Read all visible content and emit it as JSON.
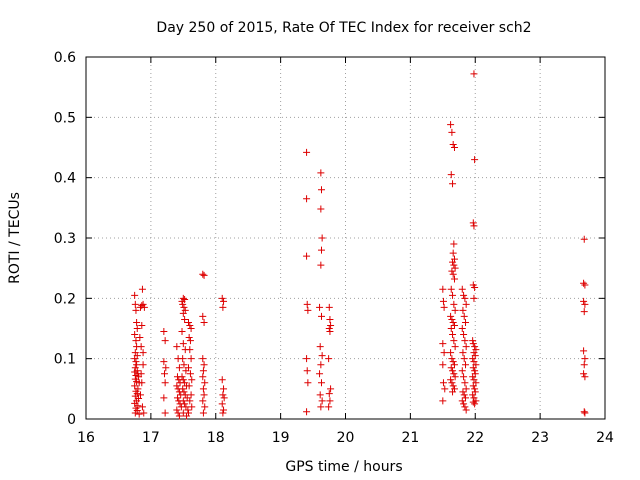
{
  "chart_data": {
    "type": "scatter",
    "title": "Day 250 of 2015, Rate Of TEC Index for receiver sch2",
    "xlabel": "GPS time / hours",
    "ylabel": "ROTI / TECUs",
    "xlim": [
      16,
      24
    ],
    "ylim": [
      0,
      0.6
    ],
    "xticks": [
      "16",
      "17",
      "18",
      "19",
      "20",
      "21",
      "22",
      "23",
      "24"
    ],
    "yticks": [
      "0",
      "0.1",
      "0.2",
      "0.3",
      "0.4",
      "0.5",
      "0.6"
    ],
    "grid": true,
    "marker": "plus",
    "color": "#dd0000",
    "points": [
      [
        16.75,
        0.205
      ],
      [
        16.76,
        0.19
      ],
      [
        16.77,
        0.18
      ],
      [
        16.78,
        0.16
      ],
      [
        16.79,
        0.15
      ],
      [
        16.75,
        0.14
      ],
      [
        16.77,
        0.13
      ],
      [
        16.78,
        0.12
      ],
      [
        16.76,
        0.11
      ],
      [
        16.79,
        0.105
      ],
      [
        16.75,
        0.1
      ],
      [
        16.77,
        0.095
      ],
      [
        16.78,
        0.09
      ],
      [
        16.76,
        0.085
      ],
      [
        16.79,
        0.08
      ],
      [
        16.75,
        0.078
      ],
      [
        16.8,
        0.075
      ],
      [
        16.77,
        0.072
      ],
      [
        16.81,
        0.07
      ],
      [
        16.76,
        0.066
      ],
      [
        16.78,
        0.062
      ],
      [
        16.82,
        0.06
      ],
      [
        16.75,
        0.055
      ],
      [
        16.8,
        0.05
      ],
      [
        16.77,
        0.046
      ],
      [
        16.79,
        0.042
      ],
      [
        16.76,
        0.038
      ],
      [
        16.81,
        0.034
      ],
      [
        16.78,
        0.03
      ],
      [
        16.75,
        0.026
      ],
      [
        16.8,
        0.022
      ],
      [
        16.77,
        0.018
      ],
      [
        16.79,
        0.014
      ],
      [
        16.76,
        0.01
      ],
      [
        16.82,
        0.008
      ],
      [
        16.84,
        0.185
      ],
      [
        16.86,
        0.188
      ],
      [
        16.88,
        0.19
      ],
      [
        16.9,
        0.185
      ],
      [
        16.87,
        0.215
      ],
      [
        16.85,
        0.12
      ],
      [
        16.88,
        0.09
      ],
      [
        16.86,
        0.06
      ],
      [
        16.84,
        0.04
      ],
      [
        16.87,
        0.02
      ],
      [
        16.89,
        0.01
      ],
      [
        16.85,
        0.075
      ],
      [
        16.88,
        0.11
      ],
      [
        16.86,
        0.155
      ],
      [
        16.83,
        0.135
      ],
      [
        17.2,
        0.145
      ],
      [
        17.22,
        0.13
      ],
      [
        17.2,
        0.095
      ],
      [
        17.23,
        0.085
      ],
      [
        17.21,
        0.075
      ],
      [
        17.22,
        0.06
      ],
      [
        17.2,
        0.035
      ],
      [
        17.22,
        0.01
      ],
      [
        17.4,
        0.12
      ],
      [
        17.42,
        0.1
      ],
      [
        17.44,
        0.085
      ],
      [
        17.41,
        0.07
      ],
      [
        17.43,
        0.065
      ],
      [
        17.45,
        0.06
      ],
      [
        17.4,
        0.055
      ],
      [
        17.42,
        0.05
      ],
      [
        17.44,
        0.045
      ],
      [
        17.46,
        0.04
      ],
      [
        17.41,
        0.035
      ],
      [
        17.43,
        0.03
      ],
      [
        17.45,
        0.025
      ],
      [
        17.47,
        0.02
      ],
      [
        17.4,
        0.015
      ],
      [
        17.42,
        0.01
      ],
      [
        17.44,
        0.005
      ],
      [
        17.48,
        0.195
      ],
      [
        17.5,
        0.2
      ],
      [
        17.52,
        0.198
      ],
      [
        17.49,
        0.19
      ],
      [
        17.51,
        0.185
      ],
      [
        17.53,
        0.18
      ],
      [
        17.5,
        0.175
      ],
      [
        17.52,
        0.165
      ],
      [
        17.48,
        0.145
      ],
      [
        17.5,
        0.125
      ],
      [
        17.53,
        0.115
      ],
      [
        17.49,
        0.1
      ],
      [
        17.51,
        0.09
      ],
      [
        17.54,
        0.08
      ],
      [
        17.48,
        0.07
      ],
      [
        17.5,
        0.065
      ],
      [
        17.52,
        0.06
      ],
      [
        17.55,
        0.055
      ],
      [
        17.49,
        0.05
      ],
      [
        17.51,
        0.045
      ],
      [
        17.53,
        0.04
      ],
      [
        17.56,
        0.035
      ],
      [
        17.5,
        0.03
      ],
      [
        17.52,
        0.025
      ],
      [
        17.54,
        0.02
      ],
      [
        17.57,
        0.015
      ],
      [
        17.5,
        0.01
      ],
      [
        17.55,
        0.005
      ],
      [
        17.58,
        0.16
      ],
      [
        17.6,
        0.155
      ],
      [
        17.62,
        0.15
      ],
      [
        17.59,
        0.135
      ],
      [
        17.61,
        0.13
      ],
      [
        17.6,
        0.115
      ],
      [
        17.62,
        0.1
      ],
      [
        17.58,
        0.085
      ],
      [
        17.61,
        0.075
      ],
      [
        17.63,
        0.065
      ],
      [
        17.59,
        0.055
      ],
      [
        17.62,
        0.04
      ],
      [
        17.6,
        0.03
      ],
      [
        17.63,
        0.02
      ],
      [
        17.58,
        0.01
      ],
      [
        17.8,
        0.24
      ],
      [
        17.82,
        0.238
      ],
      [
        17.8,
        0.17
      ],
      [
        17.82,
        0.16
      ],
      [
        17.8,
        0.1
      ],
      [
        17.82,
        0.09
      ],
      [
        17.81,
        0.08
      ],
      [
        17.8,
        0.07
      ],
      [
        17.83,
        0.06
      ],
      [
        17.81,
        0.05
      ],
      [
        17.82,
        0.04
      ],
      [
        17.8,
        0.03
      ],
      [
        17.83,
        0.02
      ],
      [
        17.81,
        0.01
      ],
      [
        18.1,
        0.2
      ],
      [
        18.12,
        0.195
      ],
      [
        18.11,
        0.185
      ],
      [
        18.1,
        0.065
      ],
      [
        18.12,
        0.05
      ],
      [
        18.11,
        0.04
      ],
      [
        18.13,
        0.035
      ],
      [
        18.1,
        0.025
      ],
      [
        18.12,
        0.015
      ],
      [
        18.11,
        0.01
      ],
      [
        19.4,
        0.442
      ],
      [
        19.4,
        0.365
      ],
      [
        19.4,
        0.27
      ],
      [
        19.41,
        0.19
      ],
      [
        19.42,
        0.18
      ],
      [
        19.4,
        0.1
      ],
      [
        19.41,
        0.08
      ],
      [
        19.42,
        0.06
      ],
      [
        19.4,
        0.012
      ],
      [
        19.62,
        0.408
      ],
      [
        19.63,
        0.38
      ],
      [
        19.62,
        0.348
      ],
      [
        19.64,
        0.3
      ],
      [
        19.63,
        0.28
      ],
      [
        19.62,
        0.255
      ],
      [
        19.6,
        0.185
      ],
      [
        19.63,
        0.17
      ],
      [
        19.61,
        0.12
      ],
      [
        19.64,
        0.105
      ],
      [
        19.62,
        0.09
      ],
      [
        19.6,
        0.075
      ],
      [
        19.63,
        0.06
      ],
      [
        19.61,
        0.04
      ],
      [
        19.64,
        0.03
      ],
      [
        19.62,
        0.02
      ],
      [
        19.75,
        0.185
      ],
      [
        19.76,
        0.165
      ],
      [
        19.77,
        0.155
      ],
      [
        19.75,
        0.15
      ],
      [
        19.76,
        0.145
      ],
      [
        19.74,
        0.1
      ],
      [
        19.77,
        0.05
      ],
      [
        19.75,
        0.042
      ],
      [
        19.76,
        0.03
      ],
      [
        19.74,
        0.02
      ],
      [
        21.5,
        0.215
      ],
      [
        21.51,
        0.195
      ],
      [
        21.52,
        0.185
      ],
      [
        21.5,
        0.125
      ],
      [
        21.52,
        0.11
      ],
      [
        21.5,
        0.09
      ],
      [
        21.51,
        0.06
      ],
      [
        21.53,
        0.05
      ],
      [
        21.5,
        0.03
      ],
      [
        21.62,
        0.488
      ],
      [
        21.64,
        0.475
      ],
      [
        21.66,
        0.455
      ],
      [
        21.68,
        0.45
      ],
      [
        21.63,
        0.405
      ],
      [
        21.65,
        0.39
      ],
      [
        21.67,
        0.29
      ],
      [
        21.66,
        0.275
      ],
      [
        21.68,
        0.265
      ],
      [
        21.65,
        0.26
      ],
      [
        21.67,
        0.255
      ],
      [
        21.69,
        0.25
      ],
      [
        21.64,
        0.245
      ],
      [
        21.66,
        0.24
      ],
      [
        21.68,
        0.232
      ],
      [
        21.63,
        0.215
      ],
      [
        21.65,
        0.205
      ],
      [
        21.67,
        0.19
      ],
      [
        21.69,
        0.18
      ],
      [
        21.62,
        0.17
      ],
      [
        21.64,
        0.165
      ],
      [
        21.66,
        0.16
      ],
      [
        21.68,
        0.155
      ],
      [
        21.63,
        0.15
      ],
      [
        21.65,
        0.14
      ],
      [
        21.67,
        0.13
      ],
      [
        21.69,
        0.12
      ],
      [
        21.62,
        0.11
      ],
      [
        21.64,
        0.1
      ],
      [
        21.66,
        0.095
      ],
      [
        21.68,
        0.09
      ],
      [
        21.63,
        0.085
      ],
      [
        21.65,
        0.08
      ],
      [
        21.67,
        0.075
      ],
      [
        21.69,
        0.07
      ],
      [
        21.62,
        0.065
      ],
      [
        21.64,
        0.06
      ],
      [
        21.66,
        0.055
      ],
      [
        21.68,
        0.05
      ],
      [
        21.65,
        0.045
      ],
      [
        21.8,
        0.215
      ],
      [
        21.82,
        0.205
      ],
      [
        21.84,
        0.2
      ],
      [
        21.86,
        0.19
      ],
      [
        21.81,
        0.18
      ],
      [
        21.83,
        0.17
      ],
      [
        21.85,
        0.16
      ],
      [
        21.8,
        0.15
      ],
      [
        21.82,
        0.14
      ],
      [
        21.84,
        0.13
      ],
      [
        21.86,
        0.12
      ],
      [
        21.81,
        0.11
      ],
      [
        21.83,
        0.1
      ],
      [
        21.85,
        0.09
      ],
      [
        21.8,
        0.08
      ],
      [
        21.82,
        0.07
      ],
      [
        21.84,
        0.06
      ],
      [
        21.86,
        0.05
      ],
      [
        21.81,
        0.045
      ],
      [
        21.83,
        0.04
      ],
      [
        21.85,
        0.035
      ],
      [
        21.8,
        0.03
      ],
      [
        21.82,
        0.025
      ],
      [
        21.84,
        0.02
      ],
      [
        21.86,
        0.015
      ],
      [
        21.98,
        0.572
      ],
      [
        21.99,
        0.43
      ],
      [
        21.97,
        0.325
      ],
      [
        21.98,
        0.32
      ],
      [
        21.97,
        0.222
      ],
      [
        21.99,
        0.218
      ],
      [
        21.98,
        0.2
      ],
      [
        21.96,
        0.13
      ],
      [
        21.97,
        0.125
      ],
      [
        21.99,
        0.12
      ],
      [
        22.01,
        0.115
      ],
      [
        21.98,
        0.11
      ],
      [
        22.0,
        0.105
      ],
      [
        21.96,
        0.1
      ],
      [
        21.98,
        0.095
      ],
      [
        22.01,
        0.09
      ],
      [
        21.97,
        0.085
      ],
      [
        21.99,
        0.08
      ],
      [
        22.0,
        0.075
      ],
      [
        21.96,
        0.07
      ],
      [
        21.98,
        0.065
      ],
      [
        22.01,
        0.06
      ],
      [
        21.97,
        0.055
      ],
      [
        21.99,
        0.05
      ],
      [
        22.0,
        0.045
      ],
      [
        21.96,
        0.04
      ],
      [
        21.98,
        0.035
      ],
      [
        22.01,
        0.03
      ],
      [
        21.97,
        0.028
      ],
      [
        21.99,
        0.025
      ],
      [
        23.68,
        0.298
      ],
      [
        23.67,
        0.225
      ],
      [
        23.69,
        0.222
      ],
      [
        23.67,
        0.195
      ],
      [
        23.69,
        0.19
      ],
      [
        23.68,
        0.178
      ],
      [
        23.67,
        0.113
      ],
      [
        23.69,
        0.1
      ],
      [
        23.68,
        0.09
      ],
      [
        23.67,
        0.075
      ],
      [
        23.69,
        0.07
      ],
      [
        23.68,
        0.012
      ],
      [
        23.69,
        0.01
      ]
    ]
  }
}
